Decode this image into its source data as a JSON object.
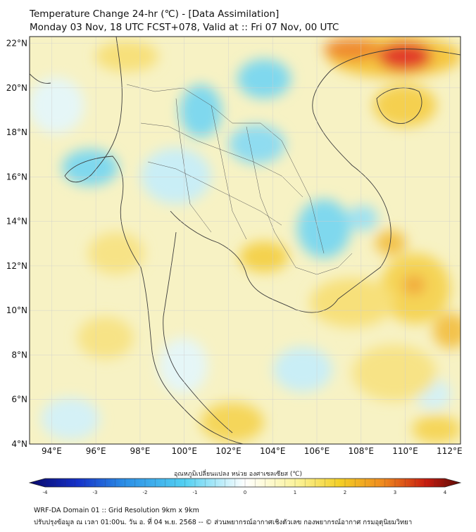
{
  "title": {
    "line1": "Temperature Change 24-hr (℃) - [Data Assimilation]",
    "line2": "Monday 03 Nov, 18 UTC FCST+078, Valid at :: Fri 07 Nov, 00 UTC"
  },
  "map": {
    "lat_labels": [
      "22°N",
      "20°N",
      "18°N",
      "16°N",
      "14°N",
      "12°N",
      "10°N",
      "8°N",
      "6°N",
      "4°N"
    ],
    "lon_labels": [
      "94°E",
      "96°E",
      "98°E",
      "100°E",
      "102°E",
      "104°E",
      "106°E",
      "108°E",
      "110°E",
      "112°E"
    ],
    "lat_values": [
      22,
      20,
      18,
      16,
      14,
      12,
      10,
      8,
      6,
      4
    ],
    "lon_values": [
      94,
      96,
      98,
      100,
      102,
      104,
      106,
      108,
      110,
      112
    ],
    "lon_range": [
      93,
      112.5
    ],
    "lat_range": [
      4,
      22.3
    ],
    "colors": {
      "background": "#f7f2c4",
      "cool": "#7fd8ee",
      "light_cool": "#d4f1f6",
      "warm": "#f5de5a",
      "orange": "#f1a93a",
      "hot": "#e23a2a",
      "coast": "#3b3b3b"
    }
  },
  "colorbar": {
    "label": "อุณหภูมิเปลี่ยนแปลง หน่วย องศาเซลเซียส (℃)",
    "tick_labels": [
      "-4",
      "-3",
      "-2",
      "-1",
      "0",
      "1",
      "2",
      "3",
      "4"
    ],
    "tick_values": [
      -4,
      -3,
      -2,
      -1,
      0,
      1,
      2,
      3,
      4
    ],
    "range": [
      -4,
      4
    ],
    "stops": [
      "#08086b",
      "#1530c8",
      "#2b8ee6",
      "#52d0f2",
      "#ffffff",
      "#fbf39a",
      "#f3cf26",
      "#ef8a1f",
      "#c81d10",
      "#5a0a05"
    ]
  },
  "footer": {
    "line1": "WRF-DA Domain 01 :: Grid Resolution 9km x 9km",
    "line2": "ปรับปรุงข้อมูล ณ เวลา 01:00น. วัน อ. ที่ 04 พ.ย. 2568 -- © ส่วนพยากรณ์อากาศเชิงตัวเลข กองพยากรณ์อากาศ กรมอุตุนิยมวิทยา"
  }
}
